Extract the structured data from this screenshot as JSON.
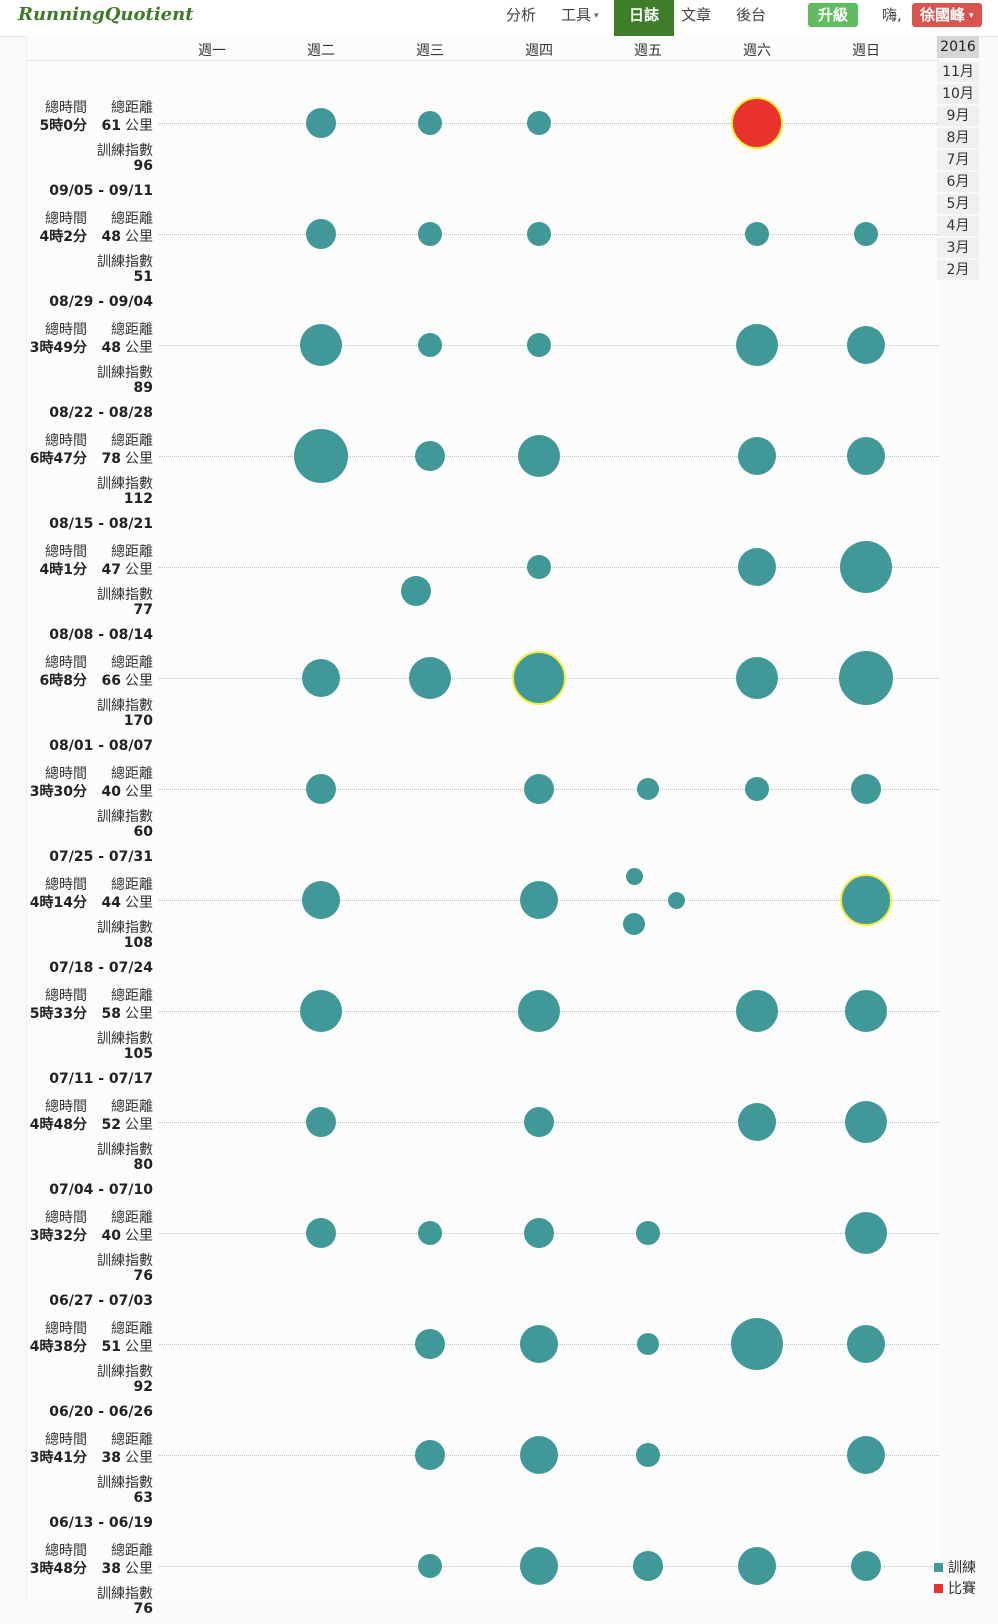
{
  "header": {
    "logo": "RunningQuotient",
    "nav": [
      {
        "label": "分析",
        "caret": false,
        "active": false
      },
      {
        "label": "工具",
        "caret": true,
        "active": false
      },
      {
        "label": "日誌",
        "caret": false,
        "active": true
      },
      {
        "label": "文章",
        "caret": false,
        "active": false
      },
      {
        "label": "後台",
        "caret": false,
        "active": false
      }
    ],
    "upgrade_label": "升級",
    "greeting": "嗨,",
    "user_name": "徐國峰",
    "caret_glyph": "▾"
  },
  "day_labels": [
    "週一",
    "週二",
    "週三",
    "週四",
    "週五",
    "週六",
    "週日"
  ],
  "labels": {
    "total_time": "總時間",
    "total_distance": "總距離",
    "distance_unit": "公里",
    "training_index": "訓練指數"
  },
  "weeks": [
    {
      "range": "",
      "time": "5時0分",
      "distance": "61",
      "index": "96",
      "runs": [
        {
          "day": 1,
          "size": "s"
        },
        {
          "day": 2,
          "size": "xs"
        },
        {
          "day": 3,
          "size": "xs"
        },
        {
          "day": 5,
          "size": "xl",
          "type": "race",
          "highlight": true
        }
      ]
    },
    {
      "range": "09/05 - 09/11",
      "time": "4時2分",
      "distance": "48",
      "index": "51",
      "runs": [
        {
          "day": 1,
          "size": "s"
        },
        {
          "day": 2,
          "size": "xs"
        },
        {
          "day": 3,
          "size": "xs"
        },
        {
          "day": 5,
          "size": "xs"
        },
        {
          "day": 6,
          "size": "xs"
        }
      ]
    },
    {
      "range": "08/29 - 09/04",
      "time": "3時49分",
      "distance": "48",
      "index": "89",
      "runs": [
        {
          "day": 1,
          "size": "l"
        },
        {
          "day": 2,
          "size": "xs"
        },
        {
          "day": 3,
          "size": "xs"
        },
        {
          "day": 5,
          "size": "l"
        },
        {
          "day": 6,
          "size": "m"
        }
      ]
    },
    {
      "range": "08/22 - 08/28",
      "time": "6時47分",
      "distance": "78",
      "index": "112",
      "runs": [
        {
          "day": 1,
          "size": "xxl"
        },
        {
          "day": 2,
          "size": "s"
        },
        {
          "day": 3,
          "size": "l"
        },
        {
          "day": 5,
          "size": "m"
        },
        {
          "day": 6,
          "size": "m"
        }
      ]
    },
    {
      "range": "08/15 - 08/21",
      "time": "4時1分",
      "distance": "47",
      "index": "77",
      "runs": [
        {
          "day": 2,
          "size": "s",
          "dx": -14,
          "dy": 24
        },
        {
          "day": 3,
          "size": "xs"
        },
        {
          "day": 5,
          "size": "m"
        },
        {
          "day": 6,
          "size": "xl"
        }
      ]
    },
    {
      "range": "08/08 - 08/14",
      "time": "6時8分",
      "distance": "66",
      "index": "170",
      "runs": [
        {
          "day": 1,
          "size": "m"
        },
        {
          "day": 2,
          "size": "l"
        },
        {
          "day": 3,
          "size": "xxl",
          "highlight": true
        },
        {
          "day": 5,
          "size": "l"
        },
        {
          "day": 6,
          "size": "xxl"
        }
      ]
    },
    {
      "range": "08/01 - 08/07",
      "time": "3時30分",
      "distance": "40",
      "index": "60",
      "runs": [
        {
          "day": 1,
          "size": "s"
        },
        {
          "day": 3,
          "size": "s"
        },
        {
          "day": 4,
          "size": "xxs"
        },
        {
          "day": 5,
          "size": "xs"
        },
        {
          "day": 6,
          "size": "s"
        }
      ]
    },
    {
      "range": "07/25 - 07/31",
      "time": "4時14分",
      "distance": "44",
      "index": "108",
      "runs": [
        {
          "day": 1,
          "size": "m"
        },
        {
          "day": 3,
          "size": "m"
        },
        {
          "day": 4,
          "size": "tiny",
          "dx": -14,
          "dy": -24
        },
        {
          "day": 4,
          "size": "tiny",
          "dx": 28,
          "dy": 0
        },
        {
          "day": 4,
          "size": "xxs",
          "dx": -14,
          "dy": 24
        },
        {
          "day": 6,
          "size": "xl",
          "highlight": true
        }
      ]
    },
    {
      "range": "07/18 - 07/24",
      "time": "5時33分",
      "distance": "58",
      "index": "105",
      "runs": [
        {
          "day": 1,
          "size": "l"
        },
        {
          "day": 3,
          "size": "l"
        },
        {
          "day": 5,
          "size": "l"
        },
        {
          "day": 6,
          "size": "l"
        }
      ]
    },
    {
      "range": "07/11 - 07/17",
      "time": "4時48分",
      "distance": "52",
      "index": "80",
      "runs": [
        {
          "day": 1,
          "size": "s"
        },
        {
          "day": 3,
          "size": "s"
        },
        {
          "day": 5,
          "size": "m"
        },
        {
          "day": 6,
          "size": "l"
        }
      ]
    },
    {
      "range": "07/04 - 07/10",
      "time": "3時32分",
      "distance": "40",
      "index": "76",
      "runs": [
        {
          "day": 1,
          "size": "s"
        },
        {
          "day": 2,
          "size": "xs"
        },
        {
          "day": 3,
          "size": "s"
        },
        {
          "day": 4,
          "size": "xs"
        },
        {
          "day": 6,
          "size": "l"
        }
      ]
    },
    {
      "range": "06/27 - 07/03",
      "time": "4時38分",
      "distance": "51",
      "index": "92",
      "runs": [
        {
          "day": 2,
          "size": "s"
        },
        {
          "day": 3,
          "size": "m"
        },
        {
          "day": 4,
          "size": "xxs"
        },
        {
          "day": 5,
          "size": "xl"
        },
        {
          "day": 6,
          "size": "m"
        }
      ]
    },
    {
      "range": "06/20 - 06/26",
      "time": "3時41分",
      "distance": "38",
      "index": "63",
      "runs": [
        {
          "day": 2,
          "size": "s"
        },
        {
          "day": 3,
          "size": "m"
        },
        {
          "day": 4,
          "size": "xs"
        },
        {
          "day": 6,
          "size": "m"
        }
      ]
    },
    {
      "range": "06/13 - 06/19",
      "time": "3時48分",
      "distance": "38",
      "index": "76",
      "runs": [
        {
          "day": 2,
          "size": "xs"
        },
        {
          "day": 3,
          "size": "m"
        },
        {
          "day": 4,
          "size": "s"
        },
        {
          "day": 5,
          "size": "m"
        },
        {
          "day": 6,
          "size": "s"
        }
      ]
    }
  ],
  "year_nav": {
    "year": "2016",
    "months": [
      "11月",
      "10月",
      "9月",
      "8月",
      "7月",
      "6月",
      "5月",
      "4月",
      "3月",
      "2月"
    ]
  },
  "legend": [
    {
      "label": "訓練",
      "color": "#409898"
    },
    {
      "label": "比賽",
      "color": "#e8322a"
    }
  ]
}
